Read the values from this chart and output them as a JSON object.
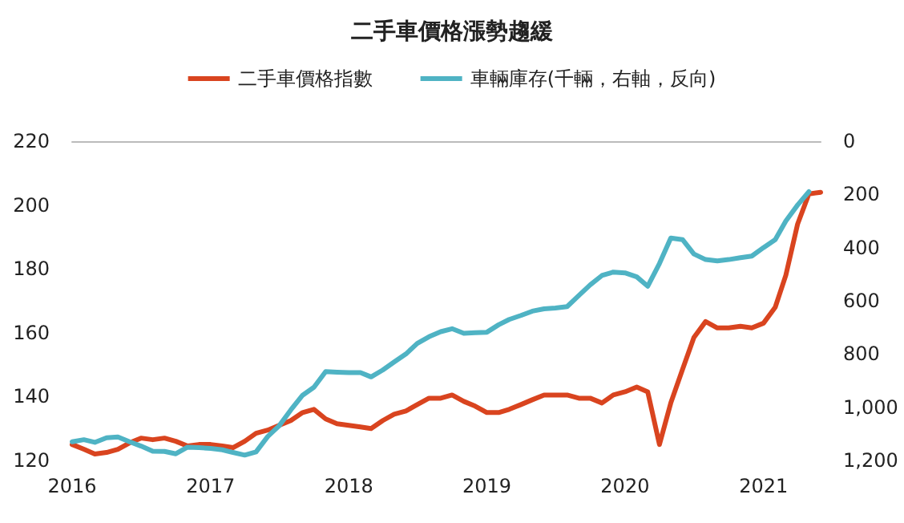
{
  "chart_data": {
    "type": "line",
    "title": "二手車價格漲勢趨緩",
    "x": [
      "2016-01",
      "2016-02",
      "2016-03",
      "2016-04",
      "2016-05",
      "2016-06",
      "2016-07",
      "2016-08",
      "2016-09",
      "2016-10",
      "2016-11",
      "2016-12",
      "2017-01",
      "2017-02",
      "2017-03",
      "2017-04",
      "2017-05",
      "2017-06",
      "2017-07",
      "2017-08",
      "2017-09",
      "2017-10",
      "2017-11",
      "2017-12",
      "2018-01",
      "2018-02",
      "2018-03",
      "2018-04",
      "2018-05",
      "2018-06",
      "2018-07",
      "2018-08",
      "2018-09",
      "2018-10",
      "2018-11",
      "2018-12",
      "2019-01",
      "2019-02",
      "2019-03",
      "2019-04",
      "2019-05",
      "2019-06",
      "2019-07",
      "2019-08",
      "2019-09",
      "2019-10",
      "2019-11",
      "2019-12",
      "2020-01",
      "2020-02",
      "2020-03",
      "2020-04",
      "2020-05",
      "2020-06",
      "2020-07",
      "2020-08",
      "2020-09",
      "2020-10",
      "2020-11",
      "2020-12",
      "2021-01",
      "2021-02",
      "2021-03",
      "2021-04",
      "2021-05",
      "2021-06"
    ],
    "series": [
      {
        "name": "二手車價格指數",
        "color": "#d9441f",
        "values": [
          125,
          123.5,
          122,
          122.5,
          123.5,
          125.5,
          127,
          126.5,
          127,
          126,
          124.5,
          125,
          125,
          124.5,
          124,
          126,
          128.5,
          129.5,
          131,
          132.5,
          135,
          136,
          133,
          131.5,
          131,
          130.5,
          130,
          132.5,
          134.5,
          135.5,
          137.5,
          139.5,
          139.5,
          140.5,
          138.5,
          137,
          135,
          135,
          136,
          137.5,
          139,
          140.5,
          140.5,
          140.5,
          139.5,
          139.5,
          138,
          140.5,
          141.5,
          143,
          141.5,
          125,
          138,
          148.5,
          158.5,
          163.5,
          161.5,
          161.5,
          162,
          161.5,
          163,
          168,
          178,
          194,
          203.5,
          204
        ]
      },
      {
        "name": "車輛庫存(千輛，右軸，反向)",
        "color": "#4fb3c4",
        "axis": "y2",
        "values": [
          1130,
          1122,
          1132,
          1115,
          1112,
          1130,
          1146,
          1165,
          1166,
          1175,
          1150,
          1152,
          1155,
          1160,
          1170,
          1180,
          1168,
          1110,
          1070,
          1010,
          955,
          925,
          866,
          868,
          870,
          870,
          886,
          860,
          830,
          800,
          760,
          735,
          716,
          705,
          722,
          720,
          718,
          690,
          670,
          655,
          639,
          630,
          627,
          622,
          580,
          540,
          505,
          492,
          495,
          510,
          545,
          460,
          364,
          370,
          424,
          445,
          450,
          445,
          438,
          432,
          400,
          370,
          300,
          240,
          190,
          null
        ]
      }
    ],
    "xlim": [
      "2016-01",
      "2021-06"
    ],
    "xticks": [
      "2016",
      "2017",
      "2018",
      "2019",
      "2020",
      "2021"
    ],
    "ylim": [
      120,
      220
    ],
    "yticks": [
      120,
      140,
      160,
      180,
      200,
      220
    ],
    "y2lim": [
      1200,
      0
    ],
    "y2ticks": [
      0,
      200,
      400,
      600,
      800,
      {
        "value": 1000,
        "label": "1,000"
      },
      {
        "value": 1200,
        "label": "1,200"
      }
    ],
    "grid": false,
    "legend": "top",
    "marker": "none",
    "line_style": "solid"
  }
}
